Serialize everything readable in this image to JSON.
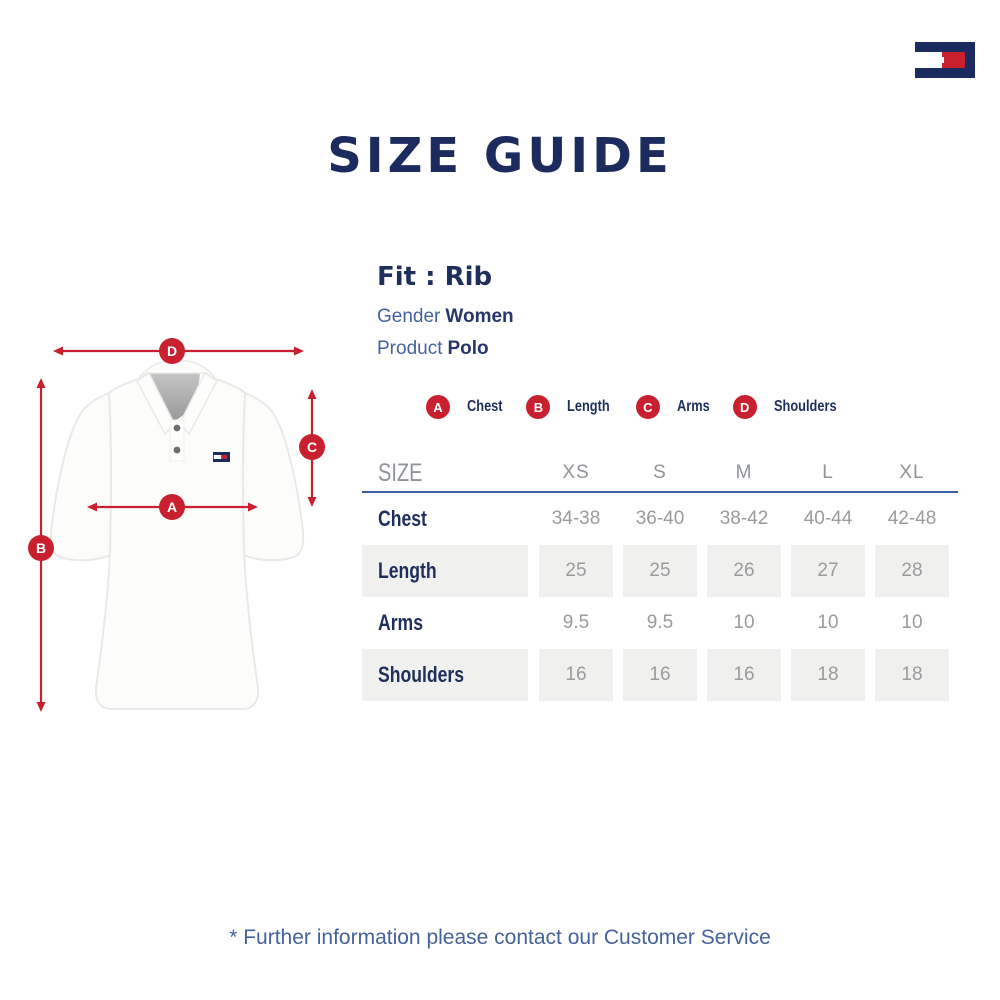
{
  "colors": {
    "navy": "#1b2b5e",
    "red": "#c8202f",
    "slate_blue": "#46629e",
    "table_line": "#3d5fa5",
    "value_gray": "#9b9b9b",
    "shaded_cell": "#f0f0ee"
  },
  "title": "SIZE GUIDE",
  "product_info": {
    "fit": "Fit : Rib",
    "gender_label": "Gender",
    "gender_value": "Women",
    "product_label": "Product",
    "product_value": "Polo"
  },
  "legend": [
    {
      "key": "A",
      "label": "Chest"
    },
    {
      "key": "B",
      "label": "Length"
    },
    {
      "key": "C",
      "label": "Arms"
    },
    {
      "key": "D",
      "label": "Shoulders"
    }
  ],
  "size_table": {
    "header": [
      "SIZE",
      "XS",
      "S",
      "M",
      "L",
      "XL"
    ],
    "rows": [
      {
        "label": "Chest",
        "shaded": false,
        "values": [
          "34-38",
          "36-40",
          "38-42",
          "40-44",
          "42-48"
        ]
      },
      {
        "label": "Length",
        "shaded": true,
        "values": [
          "25",
          "25",
          "26",
          "27",
          "28"
        ]
      },
      {
        "label": "Arms",
        "shaded": false,
        "values": [
          "9.5",
          "9.5",
          "10",
          "10",
          "10"
        ]
      },
      {
        "label": "Shoulders",
        "shaded": true,
        "values": [
          "16",
          "16",
          "16",
          "18",
          "18"
        ]
      }
    ]
  },
  "footer": {
    "note": "* Further information please contact our Customer Service"
  }
}
